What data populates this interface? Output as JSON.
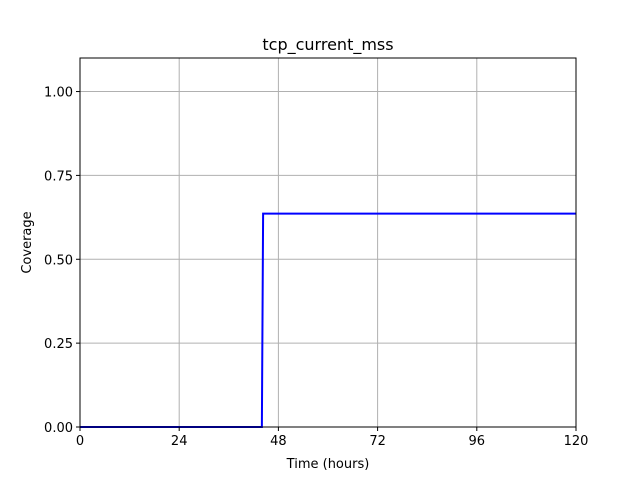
{
  "chart_data": {
    "type": "line",
    "title": "tcp_current_mss",
    "xlabel": "Time (hours)",
    "ylabel": "Coverage",
    "xlim": [
      0,
      120
    ],
    "ylim": [
      0,
      1.1
    ],
    "xticks": [
      0,
      24,
      48,
      72,
      96,
      120
    ],
    "xtick_labels": [
      "0",
      "24",
      "48",
      "72",
      "96",
      "120"
    ],
    "yticks": [
      0,
      0.25,
      0.5,
      0.75,
      1.0
    ],
    "ytick_labels": [
      "0.00",
      "0.25",
      "0.50",
      "0.75",
      "1.00"
    ],
    "grid": true,
    "legend": "none",
    "series": [
      {
        "color": "#0000ff",
        "x": [
          0,
          44,
          44.3,
          120
        ],
        "y": [
          0,
          0,
          0.636,
          0.636
        ]
      }
    ]
  }
}
